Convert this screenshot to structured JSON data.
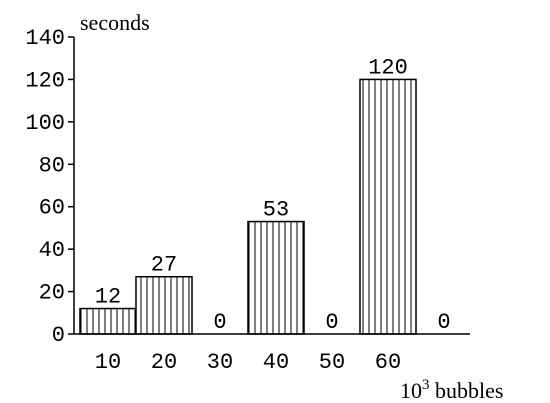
{
  "chart_data": {
    "type": "bar",
    "categories": [
      "10",
      "20",
      "30",
      "40",
      "50",
      "60",
      ""
    ],
    "values": [
      12,
      27,
      0,
      53,
      0,
      120,
      0
    ],
    "data_labels": [
      "12",
      "27",
      "0",
      "53",
      "0",
      "120",
      "0"
    ],
    "ylabel": "seconds",
    "xlabel_base": "10",
    "xlabel_exponent": "3",
    "xlabel_suffix": " bubbles",
    "ylim": [
      0,
      140
    ],
    "yticks": [
      0,
      20,
      40,
      60,
      80,
      100,
      120,
      140
    ],
    "grid": false,
    "bar_pattern": "vertical-stripes"
  }
}
